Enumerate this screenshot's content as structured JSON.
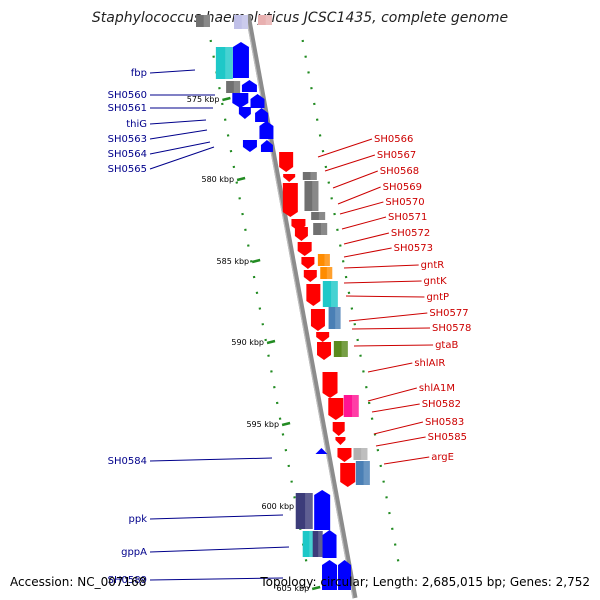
{
  "title": "Staphylococcus haemolyticus JCSC1435, complete genome",
  "footer": {
    "accession": "Accession: NC_007168",
    "summary": "Topology: circular; Length: 2,685,015 bp; Genes: 2,752"
  },
  "colors": {
    "backbone": "#8c8c8c",
    "forward": "#0000ff",
    "reverse": "#ff0000",
    "tick": "#228b22",
    "left_label": "#00008b",
    "right_label": "#cc0000",
    "cyan": "#1ec8c8",
    "orange": "#ff8c00",
    "gray": "#707070",
    "steelblue": "#4a7fb5",
    "olive": "#5a8a1e",
    "magenta": "#ff1493",
    "darkslate": "#3c3c7a",
    "light_gray": "#b0b0b0"
  },
  "scale_labels": [
    "575 kbp",
    "580 kbp",
    "585 kbp",
    "590 kbp",
    "595 kbp",
    "600 kbp",
    "605 kbp"
  ],
  "left_genes": [
    "fbp",
    "SH0560",
    "SH0561",
    "thiG",
    "SH0563",
    "SH0564",
    "SH0565",
    "SH0584",
    "ppk",
    "gppA",
    "SH0589"
  ],
  "right_genes": [
    "SH0566",
    "SH0567",
    "SH0568",
    "SH0569",
    "SH0570",
    "SH0571",
    "SH0572",
    "SH0573",
    "gntR",
    "gntK",
    "gntP",
    "SH0577",
    "SH0578",
    "gtaB",
    "shlAIR",
    "shlA1M",
    "SH0582",
    "SH0583",
    "SH0585",
    "argE"
  ]
}
